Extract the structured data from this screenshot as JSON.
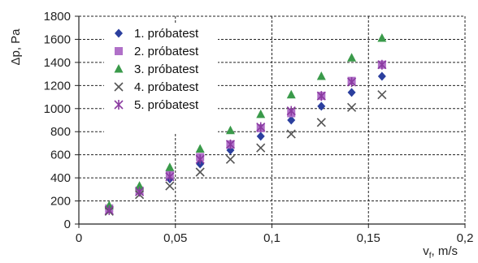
{
  "chart_data": {
    "type": "scatter",
    "xlabel": "v",
    "xlabel_sub": "f",
    "xlabel_unit": ", m/s",
    "ylabel": "Δp, Pa",
    "xlim": [
      0,
      0.2
    ],
    "ylim": [
      0,
      1800
    ],
    "x_ticks": [
      0,
      0.05,
      0.1,
      0.15,
      0.2
    ],
    "x_tick_labels": [
      "0",
      "0,05",
      "0,1",
      "0,15",
      "0,2"
    ],
    "y_ticks": [
      0,
      200,
      400,
      600,
      800,
      1000,
      1200,
      1400,
      1600,
      1800
    ],
    "y_tick_labels": [
      "0",
      "200",
      "400",
      "600",
      "800",
      "1000",
      "1200",
      "1400",
      "1600",
      "1800"
    ],
    "grid": true,
    "legend_position": "top-left",
    "series": [
      {
        "name": "1. próbatest",
        "marker": "diamond",
        "color": "#2b3f9e",
        "x": [
          0.0157,
          0.0314,
          0.0471,
          0.0628,
          0.0785,
          0.0942,
          0.11,
          0.1256,
          0.1413,
          0.157
        ],
        "y": [
          140,
          280,
          390,
          520,
          640,
          760,
          900,
          1020,
          1140,
          1280
        ]
      },
      {
        "name": "2. próbatest",
        "marker": "square",
        "color": "#b070c8",
        "x": [
          0.0157,
          0.0314,
          0.0471,
          0.0628,
          0.0785,
          0.0942,
          0.11,
          0.1256,
          0.1413,
          0.157
        ],
        "y": [
          135,
          290,
          430,
          580,
          690,
          830,
          960,
          1110,
          1240,
          1380
        ]
      },
      {
        "name": "3. próbatest",
        "marker": "triangle",
        "color": "#3a9a4a",
        "x": [
          0.0157,
          0.0314,
          0.0471,
          0.0628,
          0.0785,
          0.0942,
          0.11,
          0.1256,
          0.1413,
          0.157
        ],
        "y": [
          160,
          330,
          490,
          650,
          810,
          950,
          1120,
          1280,
          1440,
          1610
        ]
      },
      {
        "name": "4. próbatest",
        "marker": "x",
        "color": "#555555",
        "x": [
          0.0157,
          0.0314,
          0.0471,
          0.0628,
          0.0785,
          0.0942,
          0.11,
          0.1256,
          0.1413,
          0.157
        ],
        "y": [
          110,
          255,
          330,
          450,
          560,
          660,
          780,
          880,
          1010,
          1120
        ]
      },
      {
        "name": "5. próbatest",
        "marker": "asterisk",
        "color": "#8a3aa0",
        "x": [
          0.0157,
          0.0314,
          0.0471,
          0.0628,
          0.0785,
          0.0942,
          0.11,
          0.1256,
          0.1413,
          0.157
        ],
        "y": [
          120,
          280,
          410,
          560,
          690,
          840,
          980,
          1110,
          1230,
          1380
        ]
      }
    ]
  }
}
